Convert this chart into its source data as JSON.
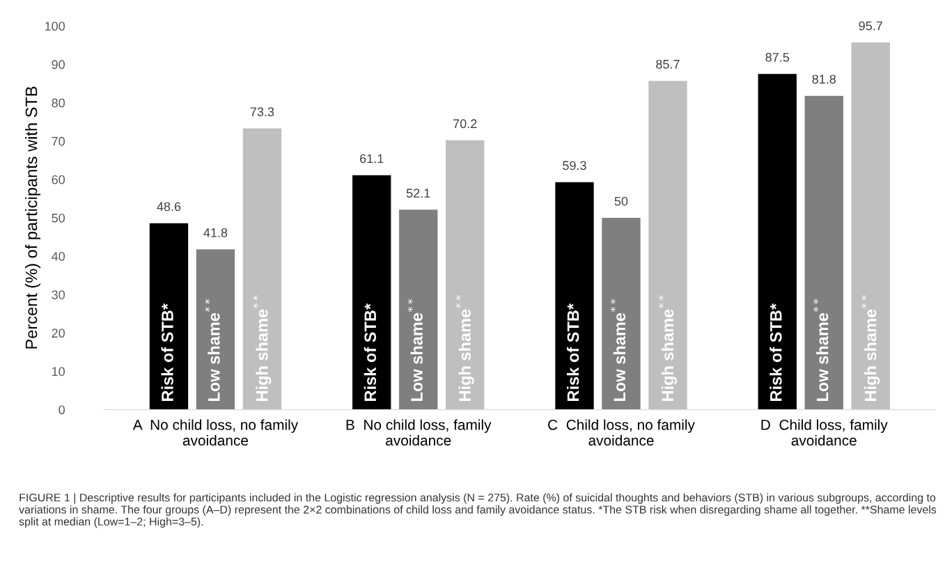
{
  "chart_data": {
    "type": "bar",
    "ylabel": "Percent (%) of participants with STB",
    "categories": [
      "A  No child loss, no family\navoidance",
      "B  No child loss, family\navoidance",
      "C  Child loss, no family\navoidance",
      "D  Child loss, family\navoidance"
    ],
    "series": [
      {
        "name": "Risk of STB*",
        "color": "#000000",
        "values": [
          48.6,
          61.1,
          59.3,
          87.5
        ]
      },
      {
        "name": "Low shame$^{**}$",
        "color": "#7f7f7f",
        "values": [
          41.8,
          52.1,
          50,
          81.8
        ]
      },
      {
        "name": "High shame$^{**}$",
        "color": "#bfbfbf",
        "values": [
          73.3,
          70.2,
          85.7,
          95.7
        ]
      }
    ],
    "ylim": [
      0,
      100
    ],
    "yticks": [
      0,
      10,
      20,
      30,
      40,
      50,
      60,
      70,
      80,
      90,
      100
    ],
    "data_labels": true,
    "grid": false,
    "legend": false,
    "annotations": [
      "FIGURE 1 | Descriptive results for participants included in the Logistic regression analysis (N = 275). Rate (%) of suicidal thoughts and behaviors (STB) in various subgroups, according to variations in shame. The four groups (A–D) represent the 2×2 combinations of child loss and family avoidance status. *The STB risk when disregarding shame all together. **Shame levels split at median (Low=1–2; High=3–5)."
    ]
  }
}
